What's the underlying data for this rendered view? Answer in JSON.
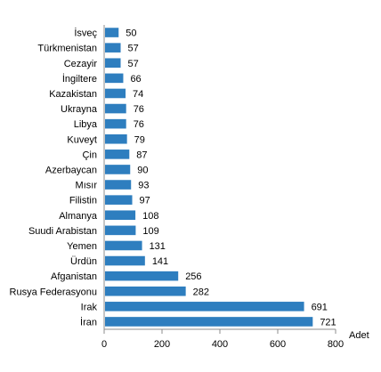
{
  "chart_data": {
    "type": "bar",
    "orientation": "horizontal",
    "categories": [
      "İsveç",
      "Türkmenistan",
      "Cezayir",
      "İngiltere",
      "Kazakistan",
      "Ukrayna",
      "Libya",
      "Kuveyt",
      "Çin",
      "Azerbaycan",
      "Mısır",
      "Filistin",
      "Almanya",
      "Suudi Arabistan",
      "Yemen",
      "Ürdün",
      "Afganistan",
      "Rusya Federasyonu",
      "Irak",
      "İran"
    ],
    "values": [
      50,
      57,
      57,
      66,
      74,
      76,
      76,
      79,
      87,
      90,
      93,
      97,
      108,
      109,
      131,
      141,
      256,
      282,
      691,
      721
    ],
    "xlim": [
      0,
      800
    ],
    "xticks": [
      0,
      200,
      400,
      600,
      800
    ],
    "xlabel": "Adet",
    "ylabel": "",
    "title": "",
    "grid": false,
    "legend": "none",
    "bar_color": "#2e7ebf"
  }
}
